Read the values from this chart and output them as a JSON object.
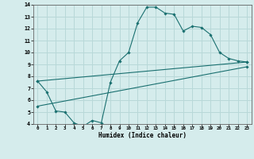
{
  "xlabel": "Humidex (Indice chaleur)",
  "ylabel": "",
  "xlim": [
    -0.5,
    23.5
  ],
  "ylim": [
    4,
    14
  ],
  "xticks": [
    0,
    1,
    2,
    3,
    4,
    5,
    6,
    7,
    8,
    9,
    10,
    11,
    12,
    13,
    14,
    15,
    16,
    17,
    18,
    19,
    20,
    21,
    22,
    23
  ],
  "yticks": [
    4,
    5,
    6,
    7,
    8,
    9,
    10,
    11,
    12,
    13,
    14
  ],
  "bg_color": "#d5ecec",
  "line_color": "#1a7070",
  "grid_color": "#b8d8d8",
  "line1_x": [
    0,
    1,
    2,
    3,
    4,
    5,
    6,
    7,
    8,
    9,
    10,
    11,
    12,
    13,
    14,
    15,
    16,
    17,
    18,
    19,
    20,
    21,
    22,
    23
  ],
  "line1_y": [
    7.6,
    6.7,
    5.1,
    5.0,
    4.1,
    3.8,
    4.3,
    4.1,
    7.5,
    9.3,
    10.0,
    12.5,
    13.8,
    13.8,
    13.3,
    13.2,
    11.8,
    12.2,
    12.1,
    11.5,
    10.0,
    9.5,
    9.3,
    9.2
  ],
  "line2_x": [
    0,
    23
  ],
  "line2_y": [
    7.6,
    9.2
  ],
  "line3_x": [
    0,
    23
  ],
  "line3_y": [
    5.5,
    8.8
  ]
}
